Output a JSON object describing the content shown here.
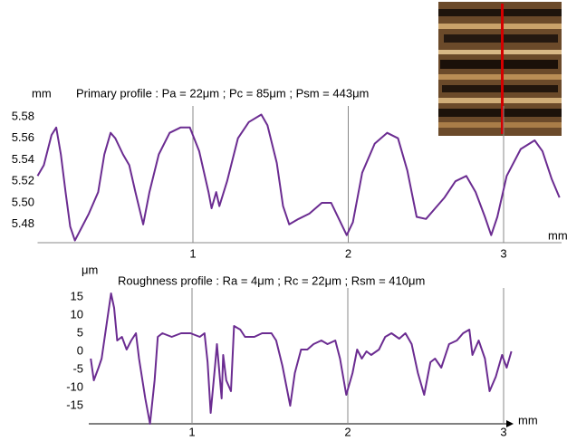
{
  "chart_data": [
    {
      "type": "line",
      "title": "Primary profile : Pa = 22μm ; Pc = 85μm ; Psm = 443μm",
      "y_label": "mm",
      "x_label": "mm",
      "color": "#6b2c91",
      "grid": true,
      "xlim": [
        0,
        3.37
      ],
      "xticks": [
        1,
        2,
        3
      ],
      "ylim": [
        5.463,
        5.59
      ],
      "yticks": [
        5.58,
        5.56,
        5.54,
        5.52,
        {
          "value": 5.5,
          "label": "5.50"
        },
        5.48
      ],
      "x": [
        0.0,
        0.04,
        0.09,
        0.12,
        0.15,
        0.18,
        0.21,
        0.24,
        0.28,
        0.33,
        0.39,
        0.43,
        0.47,
        0.5,
        0.55,
        0.59,
        0.63,
        0.68,
        0.72,
        0.78,
        0.85,
        0.92,
        0.98,
        1.04,
        1.1,
        1.12,
        1.15,
        1.17,
        1.22,
        1.29,
        1.36,
        1.44,
        1.48,
        1.54,
        1.58,
        1.62,
        1.68,
        1.75,
        1.83,
        1.89,
        1.93,
        1.99,
        2.03,
        2.09,
        2.17,
        2.25,
        2.32,
        2.38,
        2.44,
        2.5,
        2.56,
        2.62,
        2.69,
        2.76,
        2.82,
        2.88,
        2.92,
        2.96,
        3.02,
        3.11,
        3.2,
        3.25,
        3.31,
        3.36
      ],
      "values": [
        5.525,
        5.535,
        5.563,
        5.57,
        5.545,
        5.51,
        5.478,
        5.465,
        5.476,
        5.49,
        5.51,
        5.545,
        5.565,
        5.56,
        5.545,
        5.535,
        5.51,
        5.48,
        5.51,
        5.545,
        5.565,
        5.57,
        5.57,
        5.548,
        5.51,
        5.495,
        5.51,
        5.497,
        5.52,
        5.56,
        5.575,
        5.582,
        5.572,
        5.537,
        5.497,
        5.48,
        5.485,
        5.49,
        5.5,
        5.5,
        5.488,
        5.47,
        5.482,
        5.528,
        5.555,
        5.565,
        5.56,
        5.53,
        5.487,
        5.485,
        5.495,
        5.505,
        5.52,
        5.525,
        5.51,
        5.487,
        5.47,
        5.487,
        5.525,
        5.55,
        5.558,
        5.548,
        5.522,
        5.505
      ]
    },
    {
      "type": "line",
      "title": "Roughness profile : Ra = 4μm ; Rc = 22μm ; Rsm = 410μm",
      "y_label": "μm",
      "x_label": "mm",
      "color": "#6b2c91",
      "grid": true,
      "xlim": [
        0,
        3.1
      ],
      "xticks": [
        1,
        2,
        3
      ],
      "ylim": [
        -20,
        17.5
      ],
      "yticks": [
        15,
        10,
        5,
        0,
        -5,
        -10,
        -15
      ],
      "x": [
        0.35,
        0.37,
        0.4,
        0.42,
        0.45,
        0.48,
        0.5,
        0.52,
        0.55,
        0.58,
        0.61,
        0.64,
        0.66,
        0.7,
        0.73,
        0.76,
        0.78,
        0.81,
        0.87,
        0.93,
        0.99,
        1.05,
        1.08,
        1.1,
        1.12,
        1.15,
        1.16,
        1.19,
        1.2,
        1.22,
        1.25,
        1.27,
        1.31,
        1.34,
        1.4,
        1.45,
        1.51,
        1.54,
        1.58,
        1.63,
        1.66,
        1.7,
        1.74,
        1.78,
        1.83,
        1.87,
        1.92,
        1.95,
        1.99,
        2.03,
        2.06,
        2.09,
        2.12,
        2.15,
        2.2,
        2.24,
        2.28,
        2.33,
        2.37,
        2.41,
        2.45,
        2.49,
        2.53,
        2.56,
        2.6,
        2.65,
        2.7,
        2.74,
        2.78,
        2.8,
        2.84,
        2.88,
        2.91,
        2.95,
        2.99,
        3.02,
        3.05
      ],
      "values": [
        -2,
        -8,
        -4.5,
        -2,
        7,
        16,
        12,
        3,
        4,
        0.5,
        3,
        5,
        -2,
        -13,
        -20,
        -8,
        4,
        5,
        4,
        5,
        5,
        4,
        5,
        -3,
        -17,
        -3,
        2,
        -13,
        -1,
        -8,
        -11,
        7,
        6,
        4,
        4,
        5,
        5,
        3,
        -4,
        -15,
        -6,
        0.5,
        0.5,
        2,
        3,
        2,
        3,
        -2,
        -12,
        -6,
        0.5,
        -2,
        0,
        -1,
        0.5,
        4,
        5,
        3.5,
        5,
        2,
        -6,
        -12,
        -3,
        -2,
        -4.5,
        2,
        3,
        5,
        6,
        -1,
        3,
        -2,
        -11,
        -7,
        -1,
        -4.5,
        0
      ]
    }
  ]
}
